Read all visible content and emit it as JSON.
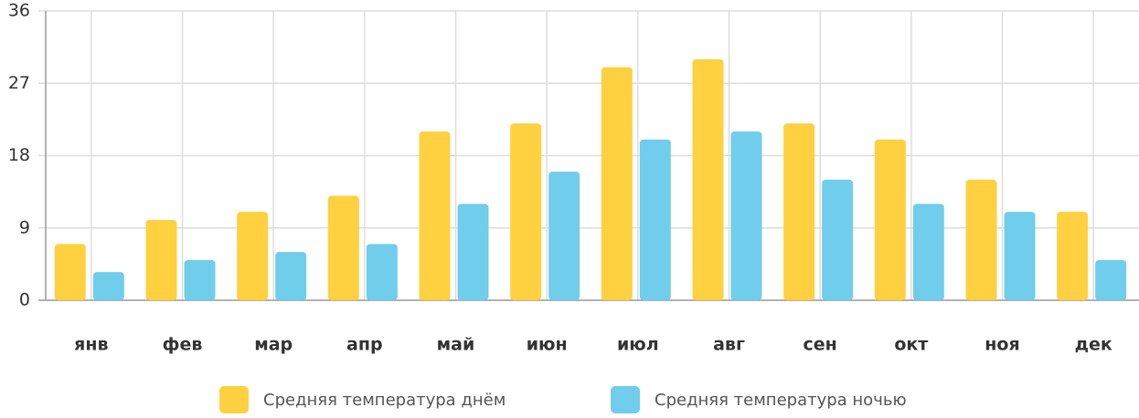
{
  "chart_data": {
    "type": "bar",
    "categories": [
      "янв",
      "фев",
      "мар",
      "апр",
      "май",
      "июн",
      "июл",
      "авг",
      "сен",
      "окт",
      "ноя",
      "дек"
    ],
    "series": [
      {
        "name": "Средняя температура днём",
        "color": "#ffd040",
        "values": [
          7,
          10,
          11,
          13,
          21,
          22,
          29,
          30,
          22,
          20,
          15,
          11
        ]
      },
      {
        "name": "Средняя температура ночью",
        "color": "#70cdeb",
        "values": [
          3.5,
          5,
          6,
          7,
          12,
          16,
          20,
          21,
          15,
          12,
          11,
          5
        ]
      }
    ],
    "ylim": [
      0,
      36
    ],
    "yticks": [
      0,
      9,
      18,
      27,
      36
    ],
    "grid": true
  }
}
